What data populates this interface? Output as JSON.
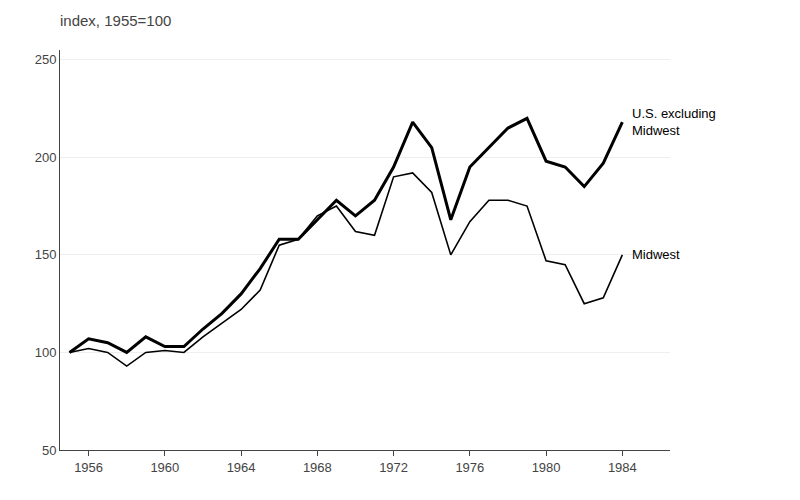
{
  "chart_data": {
    "type": "line",
    "title": "index, 1955=100",
    "x": [
      1955,
      1956,
      1957,
      1958,
      1959,
      1960,
      1961,
      1962,
      1963,
      1964,
      1965,
      1966,
      1967,
      1968,
      1969,
      1970,
      1971,
      1972,
      1973,
      1974,
      1975,
      1976,
      1977,
      1978,
      1979,
      1980,
      1981,
      1982,
      1983,
      1984
    ],
    "series": [
      {
        "name": "U.S. excluding\nMidwest",
        "color": "#000000",
        "values": [
          100,
          107,
          105,
          100,
          108,
          103,
          103,
          112,
          120,
          130,
          143,
          158,
          158,
          168,
          178,
          170,
          178,
          195,
          218,
          205,
          168,
          195,
          205,
          215,
          220,
          198,
          195,
          185,
          197,
          218
        ]
      },
      {
        "name": "Midwest",
        "color": "#000000",
        "values": [
          100,
          102,
          100,
          93,
          100,
          101,
          100,
          108,
          115,
          122,
          132,
          155,
          158,
          170,
          175,
          162,
          160,
          190,
          192,
          182,
          150,
          167,
          178,
          178,
          175,
          147,
          145,
          125,
          128,
          150
        ]
      }
    ],
    "xlim": [
      1954.5,
      1986.5
    ],
    "ylim": [
      50,
      255
    ],
    "xticks": [
      1956,
      1960,
      1964,
      1968,
      1972,
      1976,
      1980,
      1984
    ],
    "yticks": [
      50,
      100,
      150,
      200,
      250
    ],
    "grid": true
  }
}
